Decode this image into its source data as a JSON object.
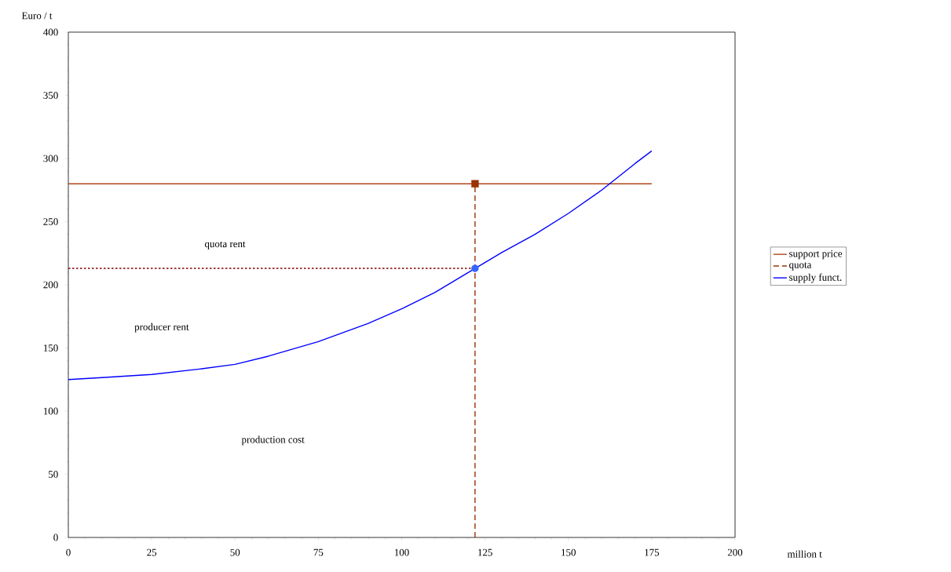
{
  "chart_data": {
    "type": "line",
    "xlabel": "million t",
    "ylabel": "Euro / t",
    "xlim": [
      0,
      200
    ],
    "ylim": [
      0,
      400
    ],
    "xticks": [
      0,
      25,
      50,
      75,
      100,
      125,
      150,
      175,
      200
    ],
    "yticks": [
      0,
      50,
      100,
      150,
      200,
      250,
      300,
      350,
      400
    ],
    "legend": "right",
    "grid": false,
    "series": [
      {
        "name": "support price",
        "color": "#b0461c",
        "line_style": "solid",
        "marker": "none",
        "x": [
          0,
          175
        ],
        "values": [
          280,
          280
        ]
      },
      {
        "name": "quota",
        "color": "#993300",
        "line_style": "dashed",
        "marker": "none",
        "x": [
          122,
          122
        ],
        "values": [
          0,
          280
        ]
      },
      {
        "name": "supply funct.",
        "color": "#0000ff",
        "line_style": "solid",
        "marker": "none",
        "x": [
          0,
          10,
          25,
          40,
          50,
          60,
          75,
          90,
          100,
          110,
          122,
          130,
          140,
          150,
          160,
          170,
          175
        ],
        "values": [
          125,
          126.5,
          129,
          133.5,
          137,
          143.5,
          155,
          169.5,
          181,
          194,
          213,
          225.5,
          240,
          256.5,
          275,
          296,
          306
        ]
      },
      {
        "type": "line",
        "color": "#800000",
        "line_style": "dotted",
        "marker": "none",
        "x": [
          0,
          122
        ],
        "values": [
          213,
          213
        ]
      },
      {
        "type": "scatter",
        "color": "#993300",
        "marker": "square",
        "x": [
          122
        ],
        "values": [
          280
        ]
      },
      {
        "type": "scatter",
        "color": "#3366ff",
        "marker": "circle",
        "x": [
          122
        ],
        "values": [
          213
        ]
      }
    ],
    "annotations": [
      "quota rent",
      "producer rent",
      "production cost"
    ]
  }
}
